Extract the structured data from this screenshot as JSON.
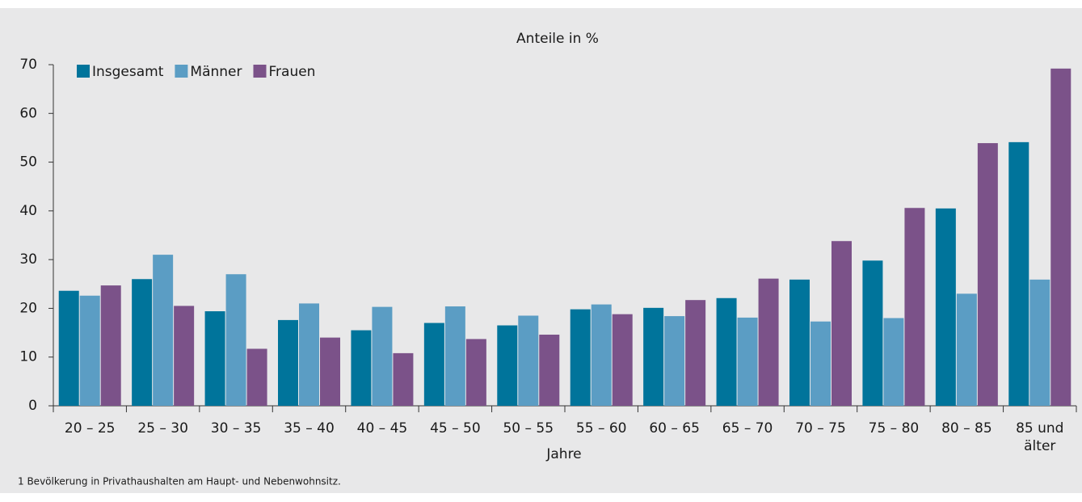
{
  "chart_data": {
    "type": "bar",
    "title": "Anteile in %",
    "x_label": "Jahre",
    "footnote": "1 Bevölkerung in Privathaushalten am Haupt- und Nebenwohnsitz.",
    "categories": [
      "20 – 25",
      "25 – 30",
      "30 – 35",
      "35 – 40",
      "40 – 45",
      "45 – 50",
      "50 – 55",
      "55 – 60",
      "60 – 65",
      "65 – 70",
      "70 – 75",
      "75 – 80",
      "80 – 85",
      "85 und\nälter"
    ],
    "series": [
      {
        "name": "Insgesamt",
        "color": "#00749b",
        "values": [
          23.6,
          26,
          19.4,
          17.6,
          15.5,
          17,
          16.5,
          19.8,
          20.1,
          22.1,
          25.9,
          29.8,
          40.5,
          54.1
        ]
      },
      {
        "name": "Männer",
        "color": "#5b9dc4",
        "values": [
          22.6,
          31,
          27,
          21,
          20.3,
          20.4,
          18.5,
          20.8,
          18.4,
          18.1,
          17.3,
          18,
          23,
          25.9
        ]
      },
      {
        "name": "Frauen",
        "color": "#7b5289",
        "values": [
          24.7,
          20.5,
          11.7,
          14,
          10.8,
          13.7,
          14.6,
          18.8,
          21.7,
          26.1,
          33.8,
          40.6,
          53.9,
          69.2
        ]
      }
    ],
    "ylim": [
      0,
      70
    ],
    "yticks": [
      0,
      10,
      20,
      30,
      40,
      50,
      60,
      70
    ],
    "legend": "top-left"
  }
}
